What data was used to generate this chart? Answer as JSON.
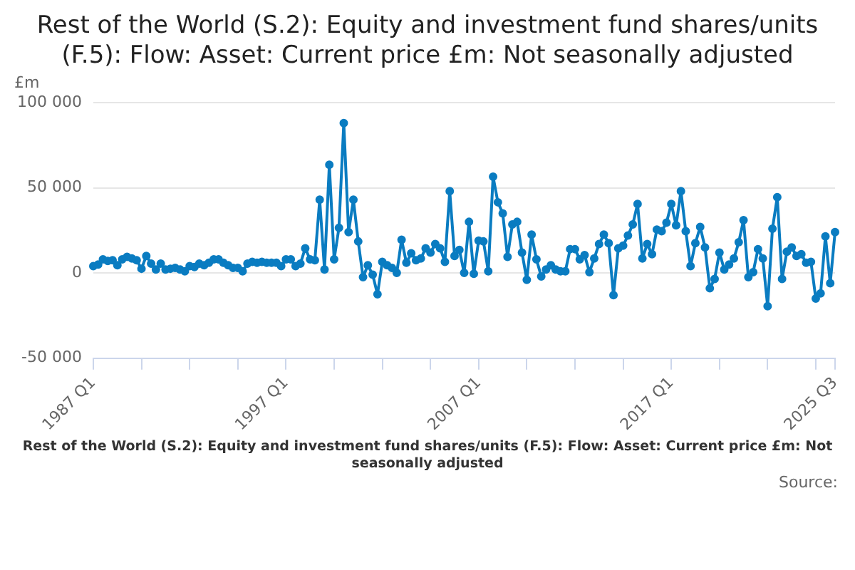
{
  "chart_data": {
    "type": "line",
    "title": "Rest of the World (S.2): Equity and investment fund shares/units (F.5): Flow: Asset: Current price £m: Not seasonally adjusted",
    "ylabel": "£m",
    "annotations": [
      "Rest of the World (S.2): Equity and investment fund shares/units (F.5): Flow: Asset: Current price £m: Not seasonally adjusted",
      "Source:"
    ],
    "categories": [
      "1987 Q1",
      null,
      null,
      null,
      null,
      null,
      null,
      null,
      null,
      null,
      null,
      null,
      null,
      null,
      null,
      null,
      null,
      null,
      null,
      null,
      null,
      null,
      null,
      null,
      null,
      null,
      null,
      null,
      null,
      null,
      null,
      null,
      null,
      null,
      null,
      null,
      null,
      null,
      null,
      null,
      "1997 Q1",
      null,
      null,
      null,
      null,
      null,
      null,
      null,
      null,
      null,
      null,
      null,
      null,
      null,
      null,
      null,
      null,
      null,
      null,
      null,
      null,
      null,
      null,
      null,
      null,
      null,
      null,
      null,
      null,
      null,
      null,
      null,
      null,
      null,
      null,
      null,
      null,
      null,
      null,
      null,
      "2007 Q1",
      null,
      null,
      null,
      null,
      null,
      null,
      null,
      null,
      null,
      null,
      null,
      null,
      null,
      null,
      null,
      null,
      null,
      null,
      null,
      null,
      null,
      null,
      null,
      null,
      null,
      null,
      null,
      null,
      null,
      null,
      null,
      null,
      null,
      null,
      null,
      null,
      null,
      null,
      null,
      "2017 Q1",
      null,
      null,
      null,
      null,
      null,
      null,
      null,
      null,
      null,
      null,
      null,
      null,
      null,
      null,
      null,
      null,
      null,
      null,
      null,
      null,
      null,
      null,
      null,
      null,
      null,
      null,
      null,
      null,
      null,
      null,
      null,
      null,
      null,
      "2025 Q3"
    ],
    "values": [
      4000,
      5000,
      8000,
      7000,
      7500,
      4500,
      8000,
      9500,
      8500,
      7500,
      2500,
      10000,
      5500,
      2000,
      5500,
      2000,
      2500,
      3000,
      2000,
      1000,
      4000,
      3500,
      5500,
      4500,
      6000,
      8000,
      8000,
      6000,
      4500,
      3000,
      3000,
      1000,
      5500,
      6500,
      6000,
      6500,
      6000,
      6000,
      6000,
      4000,
      8000,
      8000,
      4000,
      5500,
      14500,
      8000,
      7500,
      43000,
      2000,
      63500,
      8000,
      26500,
      88000,
      24000,
      43000,
      18500,
      -2500,
      4500,
      -1000,
      -12500,
      6500,
      4500,
      3000,
      0,
      19500,
      6000,
      11500,
      7500,
      8500,
      14500,
      12000,
      17000,
      14500,
      6500,
      48000,
      10000,
      13500,
      0,
      30000,
      -500,
      19000,
      18500,
      1000,
      56500,
      41500,
      35000,
      9500,
      28500,
      30000,
      12000,
      -4000,
      22500,
      8000,
      -2000,
      2000,
      4500,
      2000,
      1000,
      1000,
      14000,
      14000,
      8000,
      10500,
      500,
      8500,
      17000,
      22500,
      17500,
      -13000,
      14500,
      16000,
      22000,
      28500,
      40500,
      8500,
      17000,
      11000,
      25500,
      24500,
      29500,
      40500,
      28000,
      48000,
      24500,
      4000,
      17500,
      27000,
      15000,
      -9000,
      -3500,
      12000,
      2000,
      5000,
      8500,
      18000,
      31000,
      -2500,
      500,
      14000,
      8500,
      -19500,
      26000,
      44500,
      -3500,
      12500,
      15000,
      10000,
      11000,
      6000,
      6500,
      -15000,
      -12000,
      21500,
      -6000,
      24000
    ],
    "color": "#0a7cc1",
    "ylim": [
      -50000,
      100000
    ],
    "yticks": [
      {
        "value": -50000,
        "label": "-50 000"
      },
      0,
      {
        "value": 50000,
        "label": "50 000"
      },
      {
        "value": 100000,
        "label": "100 000"
      }
    ],
    "grid": "y",
    "legend": false,
    "marker": "circle",
    "line_style": "solid"
  }
}
